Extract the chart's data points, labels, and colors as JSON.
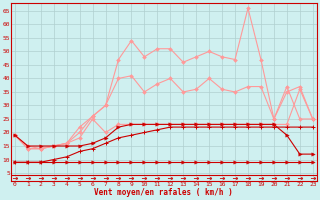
{
  "x": [
    0,
    1,
    2,
    3,
    4,
    5,
    6,
    7,
    8,
    9,
    10,
    11,
    12,
    13,
    14,
    15,
    16,
    17,
    18,
    19,
    20,
    21,
    22,
    23
  ],
  "line_dark1": [
    9,
    9,
    9,
    9,
    9,
    9,
    9,
    9,
    9,
    9,
    9,
    9,
    9,
    9,
    9,
    9,
    9,
    9,
    9,
    9,
    9,
    9,
    9,
    9
  ],
  "line_dark2": [
    9,
    9,
    9,
    10,
    11,
    13,
    14,
    16,
    18,
    19,
    20,
    21,
    22,
    22,
    22,
    22,
    22,
    22,
    22,
    22,
    22,
    22,
    22,
    22
  ],
  "line_dark3": [
    19,
    15,
    15,
    15,
    15,
    15,
    16,
    18,
    22,
    23,
    23,
    23,
    23,
    23,
    23,
    23,
    23,
    23,
    23,
    23,
    23,
    19,
    12,
    12
  ],
  "line_light1": [
    19,
    15,
    14,
    15,
    16,
    18,
    25,
    20,
    23,
    23,
    23,
    23,
    23,
    23,
    23,
    23,
    23,
    23,
    23,
    23,
    23,
    23,
    36,
    25
  ],
  "line_light2": [
    19,
    14,
    14,
    15,
    16,
    20,
    26,
    30,
    40,
    41,
    35,
    38,
    40,
    35,
    36,
    40,
    36,
    35,
    37,
    37,
    25,
    35,
    37,
    25
  ],
  "line_light3": [
    19,
    14,
    14,
    15,
    16,
    22,
    26,
    30,
    47,
    54,
    48,
    51,
    51,
    46,
    48,
    50,
    48,
    47,
    66,
    47,
    25,
    37,
    25,
    25
  ],
  "arrows_y": [
    3,
    3,
    3,
    3,
    3,
    3,
    3,
    3,
    3,
    3,
    3,
    3,
    3,
    3,
    3,
    3,
    3,
    3,
    3,
    3,
    3,
    3,
    3,
    3
  ],
  "bg_color": "#cff0f0",
  "grid_color": "#b0d0d0",
  "dark_color": "#cc0000",
  "light_color": "#ff9999",
  "arrow_color": "#cc0000",
  "xlabel": "Vent moyen/en rafales ( km/h )",
  "yticks": [
    5,
    10,
    15,
    20,
    25,
    30,
    35,
    40,
    45,
    50,
    55,
    60,
    65
  ],
  "ylim": [
    2,
    68
  ],
  "xlim": [
    -0.3,
    23.3
  ]
}
